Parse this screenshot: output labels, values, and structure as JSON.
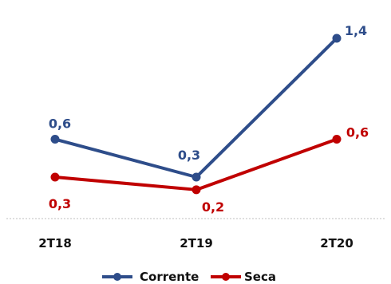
{
  "chart_data": {
    "type": "line",
    "title": "",
    "xlabel": "",
    "ylabel": "",
    "categories": [
      "2T18",
      "2T19",
      "2T20"
    ],
    "series": [
      {
        "name": "Corrente",
        "color": "#2e4d8a",
        "values": [
          0.6,
          0.3,
          1.4
        ],
        "labels": [
          "0,6",
          "0,3",
          "1,4"
        ]
      },
      {
        "name": "Seca",
        "color": "#c00000",
        "values": [
          0.3,
          0.2,
          0.6
        ],
        "labels": [
          "0,3",
          "0,2",
          "0,6"
        ]
      }
    ],
    "grid": false,
    "legend": "bottom-center"
  }
}
